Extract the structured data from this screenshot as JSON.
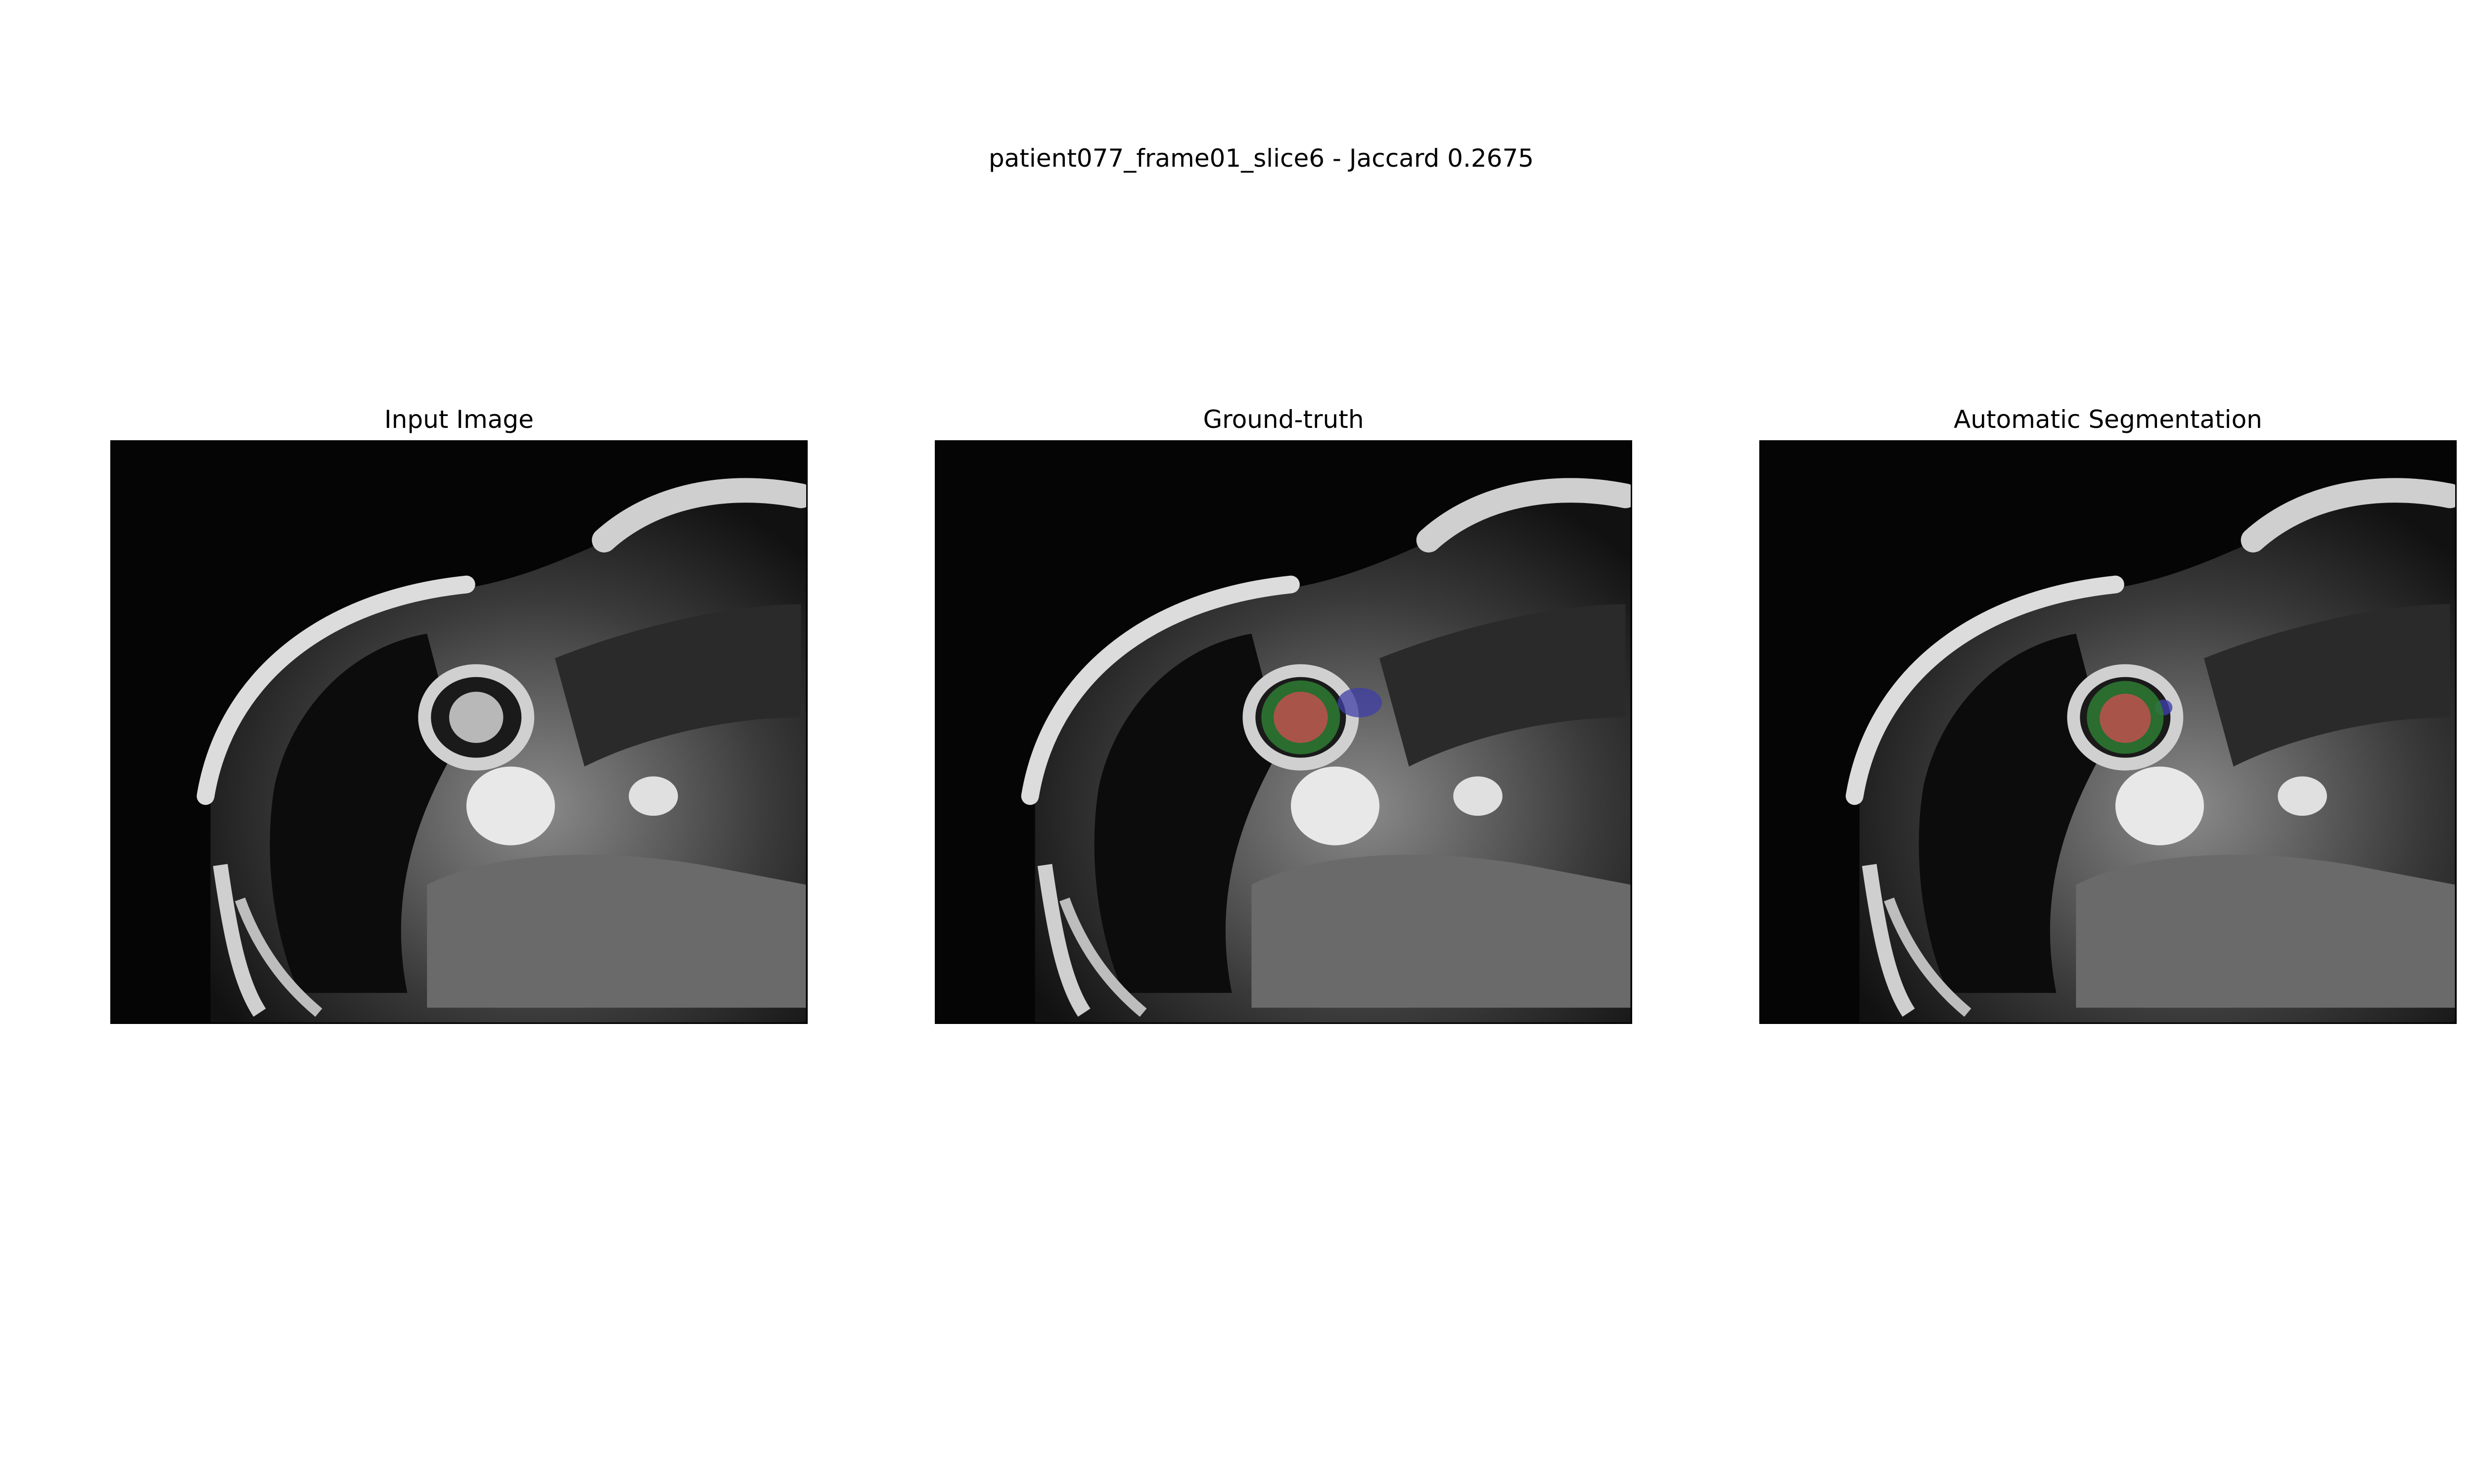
{
  "figure": {
    "suptitle": "patient077_frame01_slice6 - Jaccard 0.2675"
  },
  "panels": [
    {
      "title": "Input Image",
      "overlay": "none"
    },
    {
      "title": "Ground-truth",
      "overlay": "ground-truth-mask"
    },
    {
      "title": "Automatic Segmentation",
      "overlay": "predicted-mask"
    }
  ],
  "colors": {
    "background": "#ffffff",
    "mri_background": "#050505",
    "class_red": "#c0504d",
    "class_green": "#2e7d32",
    "class_blue": "#3f3fa8"
  }
}
